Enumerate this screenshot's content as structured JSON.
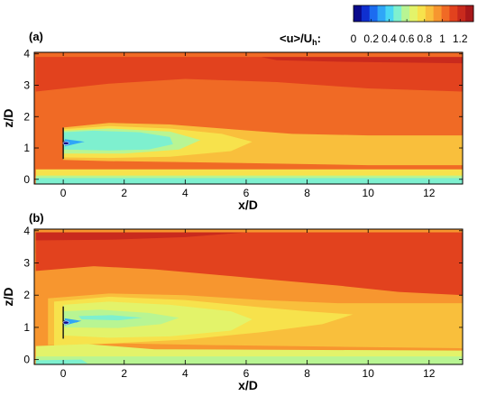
{
  "colorbar": {
    "title": "<u>/U",
    "title_sub": "h",
    "title_tail": ":",
    "ticks": [
      "0",
      "0.2",
      "0.4",
      "0.6",
      "0.8",
      "1",
      "1.2"
    ],
    "tick_values": [
      0,
      0.2,
      0.4,
      0.6,
      0.8,
      1.0,
      1.2
    ],
    "range": [
      0,
      1.35
    ],
    "colors": [
      "#0a0a8c",
      "#0f2fd0",
      "#1c6cf0",
      "#2fa6f7",
      "#49d6f4",
      "#7ef0cf",
      "#b8f593",
      "#e3f36a",
      "#f7e24c",
      "#f9bf3c",
      "#f7962f",
      "#f06a25",
      "#e2421e",
      "#c92a1d",
      "#a8181a"
    ]
  },
  "chart_data": [
    {
      "type": "heatmap",
      "panel_label": "(a)",
      "xlabel": "x/D",
      "ylabel": "z/D",
      "xlim": [
        -0.95,
        13.1
      ],
      "ylim": [
        -0.15,
        4.05
      ],
      "xticks": [
        0,
        2,
        4,
        6,
        8,
        10,
        12
      ],
      "yticks": [
        0,
        1,
        2,
        3,
        4
      ],
      "turbine": {
        "x": 0,
        "hub_z": 1.15,
        "z_range": [
          0.65,
          1.65
        ]
      },
      "contours": [
        {
          "value": 1.0,
          "points": [
            [
              -0.9,
              4.0
            ],
            [
              13.1,
              4.0
            ],
            [
              13.1,
              0.2
            ],
            [
              -0.9,
              0.2
            ]
          ]
        },
        {
          "value": 1.08,
          "points": [
            [
              -0.9,
              3.9
            ],
            [
              13.1,
              3.9
            ],
            [
              13.1,
              2.8
            ],
            [
              10.0,
              2.9
            ],
            [
              7.0,
              3.1
            ],
            [
              4.0,
              3.2
            ],
            [
              1.5,
              3.05
            ],
            [
              -0.9,
              2.8
            ]
          ]
        },
        {
          "value": 1.15,
          "points": [
            [
              -0.9,
              3.9
            ],
            [
              13.1,
              3.9
            ],
            [
              13.1,
              3.5
            ],
            [
              10.0,
              3.55
            ],
            [
              6.0,
              3.6
            ],
            [
              3.0,
              3.55
            ],
            [
              -0.9,
              3.45
            ]
          ]
        },
        {
          "value": 1.2,
          "points": [
            [
              6.5,
              3.9
            ],
            [
              13.1,
              3.9
            ],
            [
              13.1,
              3.7
            ],
            [
              9.0,
              3.75
            ],
            [
              7.0,
              3.8
            ]
          ]
        },
        {
          "value": 0.85,
          "points": [
            [
              0,
              1.65
            ],
            [
              1.5,
              1.8
            ],
            [
              3.5,
              1.75
            ],
            [
              5.5,
              1.6
            ],
            [
              7.5,
              1.45
            ],
            [
              10.0,
              1.4
            ],
            [
              13.1,
              1.4
            ],
            [
              13.1,
              0.45
            ],
            [
              10.0,
              0.45
            ],
            [
              7.0,
              0.5
            ],
            [
              4.0,
              0.55
            ],
            [
              1.5,
              0.58
            ],
            [
              0,
              0.62
            ]
          ]
        },
        {
          "value": 0.72,
          "points": [
            [
              0,
              1.6
            ],
            [
              1.5,
              1.7
            ],
            [
              3.5,
              1.62
            ],
            [
              5.2,
              1.45
            ],
            [
              6.2,
              1.2
            ],
            [
              5.5,
              0.9
            ],
            [
              3.5,
              0.72
            ],
            [
              1.5,
              0.68
            ],
            [
              0,
              0.7
            ]
          ]
        },
        {
          "value": 0.6,
          "points": [
            [
              0,
              1.55
            ],
            [
              1.5,
              1.62
            ],
            [
              3.5,
              1.52
            ],
            [
              4.5,
              1.25
            ],
            [
              3.8,
              0.95
            ],
            [
              2.0,
              0.82
            ],
            [
              0,
              0.82
            ]
          ]
        },
        {
          "value": 0.5,
          "points": [
            [
              0,
              1.5
            ],
            [
              1.0,
              1.55
            ],
            [
              2.5,
              1.5
            ],
            [
              3.5,
              1.35
            ],
            [
              3.6,
              1.12
            ],
            [
              2.8,
              0.95
            ],
            [
              1.5,
              0.92
            ],
            [
              0,
              0.95
            ]
          ]
        },
        {
          "value": 0.75,
          "points": [
            [
              -0.9,
              0.32
            ],
            [
              13.1,
              0.32
            ],
            [
              13.1,
              -0.15
            ],
            [
              -0.9,
              -0.15
            ]
          ]
        },
        {
          "value": 0.55,
          "points": [
            [
              -0.9,
              0.12
            ],
            [
              13.1,
              0.12
            ],
            [
              13.1,
              -0.15
            ],
            [
              -0.9,
              -0.15
            ]
          ]
        },
        {
          "value": 0.45,
          "points": [
            [
              -0.9,
              0.04
            ],
            [
              13.1,
              0.04
            ],
            [
              13.1,
              -0.15
            ],
            [
              -0.9,
              -0.15
            ]
          ]
        },
        {
          "value": 0.05,
          "points": [
            [
              0.02,
              1.22
            ],
            [
              0.55,
              1.18
            ],
            [
              0.02,
              1.1
            ]
          ]
        },
        {
          "value": 0.3,
          "points": [
            [
              0.05,
              1.28
            ],
            [
              0.7,
              1.2
            ],
            [
              0.05,
              1.05
            ]
          ]
        }
      ]
    },
    {
      "type": "heatmap",
      "panel_label": "(b)",
      "xlabel": "x/D",
      "ylabel": "z/D",
      "xlim": [
        -0.95,
        13.1
      ],
      "ylim": [
        -0.15,
        4.05
      ],
      "xticks": [
        0,
        2,
        4,
        6,
        8,
        10,
        12
      ],
      "yticks": [
        0,
        1,
        2,
        3,
        4
      ],
      "turbine": {
        "x": 0,
        "hub_z": 1.15,
        "z_range": [
          0.65,
          1.65
        ]
      },
      "contours": [
        {
          "value": 0.98,
          "points": [
            [
              -0.9,
              4.0
            ],
            [
              13.1,
              4.0
            ],
            [
              13.1,
              0.3
            ],
            [
              -0.9,
              0.3
            ]
          ]
        },
        {
          "value": 1.08,
          "points": [
            [
              -0.9,
              3.95
            ],
            [
              13.1,
              3.95
            ],
            [
              13.1,
              2.0
            ],
            [
              11.0,
              2.1
            ],
            [
              9.0,
              2.3
            ],
            [
              6.0,
              2.55
            ],
            [
              3.0,
              2.8
            ],
            [
              1.0,
              2.9
            ],
            [
              -0.9,
              2.75
            ]
          ]
        },
        {
          "value": 1.15,
          "points": [
            [
              -0.9,
              3.95
            ],
            [
              13.1,
              3.95
            ],
            [
              13.1,
              3.2
            ],
            [
              9.0,
              3.25
            ],
            [
              5.0,
              3.35
            ],
            [
              2.0,
              3.45
            ],
            [
              -0.9,
              3.3
            ]
          ]
        },
        {
          "value": 1.22,
          "points": [
            [
              -0.9,
              3.95
            ],
            [
              6.0,
              3.95
            ],
            [
              4.0,
              3.8
            ],
            [
              1.5,
              3.72
            ],
            [
              -0.9,
              3.7
            ]
          ]
        },
        {
          "value": 0.85,
          "points": [
            [
              -0.5,
              1.9
            ],
            [
              1.5,
              2.05
            ],
            [
              4.0,
              2.0
            ],
            [
              6.5,
              1.85
            ],
            [
              9.0,
              1.75
            ],
            [
              13.1,
              1.75
            ],
            [
              13.1,
              0.35
            ],
            [
              9.0,
              0.4
            ],
            [
              5.0,
              0.45
            ],
            [
              2.0,
              0.5
            ],
            [
              -0.5,
              0.45
            ]
          ]
        },
        {
          "value": 0.75,
          "points": [
            [
              -0.3,
              1.8
            ],
            [
              1.5,
              1.95
            ],
            [
              4.0,
              1.85
            ],
            [
              6.2,
              1.65
            ],
            [
              8.0,
              1.5
            ],
            [
              9.5,
              1.4
            ],
            [
              8.5,
              1.1
            ],
            [
              6.5,
              0.85
            ],
            [
              4.0,
              0.62
            ],
            [
              1.5,
              0.5
            ],
            [
              -0.3,
              0.42
            ]
          ]
        },
        {
          "value": 0.68,
          "points": [
            [
              0,
              1.7
            ],
            [
              1.5,
              1.8
            ],
            [
              3.5,
              1.7
            ],
            [
              5.5,
              1.5
            ],
            [
              6.2,
              1.25
            ],
            [
              5.5,
              0.9
            ],
            [
              3.5,
              0.72
            ],
            [
              1.5,
              0.68
            ],
            [
              0,
              0.75
            ]
          ]
        },
        {
          "value": 0.58,
          "points": [
            [
              0,
              1.5
            ],
            [
              1.2,
              1.55
            ],
            [
              2.8,
              1.45
            ],
            [
              3.8,
              1.3
            ],
            [
              3.2,
              1.1
            ],
            [
              1.8,
              0.98
            ],
            [
              0,
              1.0
            ]
          ]
        },
        {
          "value": 0.52,
          "points": [
            [
              0.5,
              1.35
            ],
            [
              1.6,
              1.38
            ],
            [
              2.6,
              1.3
            ],
            [
              1.8,
              1.22
            ],
            [
              0.6,
              1.25
            ]
          ]
        },
        {
          "value": 0.7,
          "points": [
            [
              -0.9,
              0.42
            ],
            [
              0.8,
              0.48
            ],
            [
              3.0,
              0.32
            ],
            [
              13.1,
              0.28
            ],
            [
              13.1,
              -0.15
            ],
            [
              -0.9,
              -0.15
            ]
          ]
        },
        {
          "value": 0.6,
          "points": [
            [
              -0.9,
              0.1
            ],
            [
              13.1,
              0.1
            ],
            [
              13.1,
              -0.15
            ],
            [
              -0.9,
              -0.15
            ]
          ]
        },
        {
          "value": 0.48,
          "points": [
            [
              -0.9,
              -0.02
            ],
            [
              0.6,
              0.0
            ],
            [
              0.8,
              -0.12
            ],
            [
              -0.9,
              -0.15
            ]
          ]
        },
        {
          "value": 0.05,
          "points": [
            [
              0.02,
              1.22
            ],
            [
              0.5,
              1.17
            ],
            [
              0.02,
              1.1
            ]
          ]
        },
        {
          "value": 0.3,
          "points": [
            [
              0.05,
              1.28
            ],
            [
              0.6,
              1.2
            ],
            [
              0.05,
              1.06
            ]
          ]
        }
      ]
    }
  ]
}
